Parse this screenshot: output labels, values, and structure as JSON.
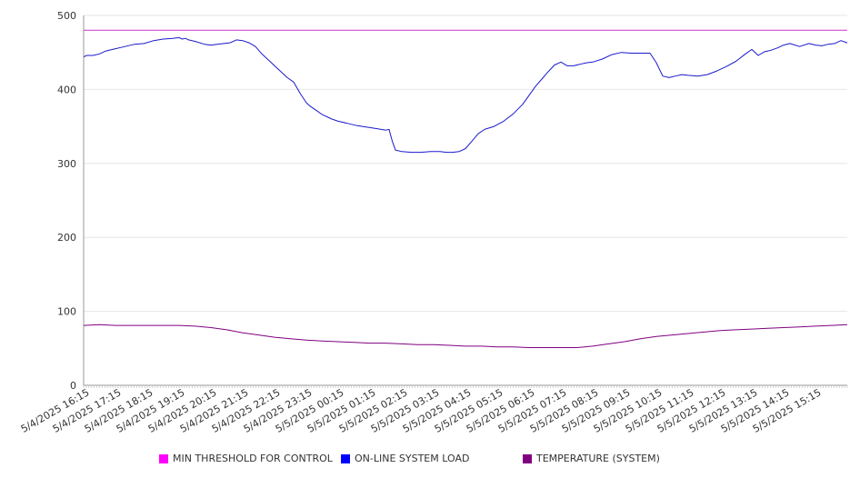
{
  "chart_data": {
    "type": "line",
    "title": "",
    "xlabel": "",
    "ylabel": "",
    "ylim": [
      0,
      500
    ],
    "yticks": [
      0,
      100,
      200,
      300,
      400,
      500
    ],
    "grid": true,
    "legend_placement": "bottom",
    "x_tick_labels": [
      "5/4/2025 16:15",
      "5/4/2025 17:15",
      "5/4/2025 18:15",
      "5/4/2025 19:15",
      "5/4/2025 20:15",
      "5/4/2025 21:15",
      "5/4/2025 22:15",
      "5/4/2025 23:15",
      "5/5/2025 00:15",
      "5/5/2025 01:15",
      "5/5/2025 02:15",
      "5/5/2025 03:15",
      "5/5/2025 04:15",
      "5/5/2025 05:15",
      "5/5/2025 06:15",
      "5/5/2025 07:15",
      "5/5/2025 08:15",
      "5/5/2025 09:15",
      "5/5/2025 10:15",
      "5/5/2025 11:15",
      "5/5/2025 12:15",
      "5/5/2025 13:15",
      "5/5/2025 14:15",
      "5/5/2025 15:15"
    ],
    "x_range": [
      0,
      24
    ],
    "series": [
      {
        "name": "MIN THRESHOLD FOR CONTROL",
        "color": "#cc33cc",
        "x": [
          0,
          24
        ],
        "y": [
          480,
          480
        ]
      },
      {
        "name": "ON-LINE SYSTEM LOAD",
        "color": "#1a1acc",
        "x": [
          0,
          0.1,
          0.3,
          0.5,
          0.7,
          1.0,
          1.3,
          1.6,
          1.9,
          2.2,
          2.5,
          2.8,
          3.0,
          3.1,
          3.2,
          3.3,
          3.5,
          3.8,
          4.0,
          4.2,
          4.4,
          4.6,
          4.8,
          5.0,
          5.2,
          5.4,
          5.6,
          5.8,
          6.0,
          6.2,
          6.4,
          6.6,
          6.8,
          7.0,
          7.1,
          7.2,
          7.3,
          7.5,
          7.8,
          8.0,
          8.3,
          8.6,
          8.9,
          9.2,
          9.5,
          9.6,
          9.7,
          9.8,
          10.0,
          10.3,
          10.6,
          10.9,
          11.2,
          11.4,
          11.6,
          11.8,
          12.0,
          12.2,
          12.4,
          12.6,
          12.9,
          13.2,
          13.5,
          13.8,
          14.0,
          14.2,
          14.4,
          14.6,
          14.8,
          15.0,
          15.2,
          15.4,
          15.6,
          15.8,
          16.0,
          16.3,
          16.6,
          16.9,
          17.2,
          17.5,
          17.8,
          18.0,
          18.2,
          18.4,
          18.6,
          18.8,
          19.0,
          19.3,
          19.6,
          19.9,
          20.2,
          20.5,
          20.8,
          21.0,
          21.2,
          21.4,
          21.5,
          21.6,
          21.8,
          22.0,
          22.2,
          22.5,
          22.8,
          23.0,
          23.2,
          23.4,
          23.6,
          23.8,
          24.0
        ],
        "y": [
          444,
          446,
          446,
          448,
          452,
          455,
          458,
          461,
          462,
          466,
          468,
          469,
          470,
          468,
          469,
          467,
          465,
          461,
          460,
          461,
          462,
          463,
          467,
          466,
          463,
          458,
          448,
          440,
          432,
          424,
          416,
          410,
          395,
          382,
          378,
          375,
          372,
          366,
          360,
          357,
          354,
          351,
          349,
          347,
          345,
          346,
          330,
          318,
          316,
          315,
          315,
          316,
          316,
          315,
          315,
          316,
          320,
          330,
          340,
          346,
          350,
          357,
          367,
          380,
          392,
          404,
          414,
          424,
          433,
          437,
          432,
          432,
          434,
          436,
          437,
          441,
          447,
          450,
          449,
          449,
          449,
          436,
          418,
          416,
          418,
          420,
          419,
          418,
          420,
          425,
          431,
          438,
          448,
          454,
          446,
          451,
          452,
          453,
          456,
          460,
          462,
          458,
          462,
          460,
          459,
          461,
          462,
          466,
          463
        ]
      },
      {
        "name": "TEMPERATURE (SYSTEM)",
        "color": "#800080",
        "x": [
          0,
          0.5,
          1.0,
          1.5,
          2.0,
          2.5,
          3.0,
          3.5,
          4.0,
          4.5,
          5.0,
          5.5,
          6.0,
          6.5,
          7.0,
          7.5,
          8.0,
          8.5,
          9.0,
          9.5,
          10.0,
          10.5,
          11.0,
          11.5,
          12.0,
          12.5,
          13.0,
          13.5,
          14.0,
          14.5,
          15.0,
          15.5,
          16.0,
          16.5,
          17.0,
          17.5,
          18.0,
          18.5,
          19.0,
          19.5,
          20.0,
          20.5,
          21.0,
          21.5,
          22.0,
          22.5,
          23.0,
          23.5,
          24.0
        ],
        "y": [
          81,
          82,
          81,
          81,
          81,
          81,
          81,
          80,
          78,
          75,
          71,
          68,
          65,
          63,
          61,
          60,
          59,
          58,
          57,
          57,
          56,
          55,
          55,
          54,
          53,
          53,
          52,
          52,
          51,
          51,
          51,
          51,
          53,
          56,
          59,
          63,
          66,
          68,
          70,
          72,
          74,
          75,
          76,
          77,
          78,
          79,
          80,
          81,
          82
        ]
      }
    ]
  }
}
